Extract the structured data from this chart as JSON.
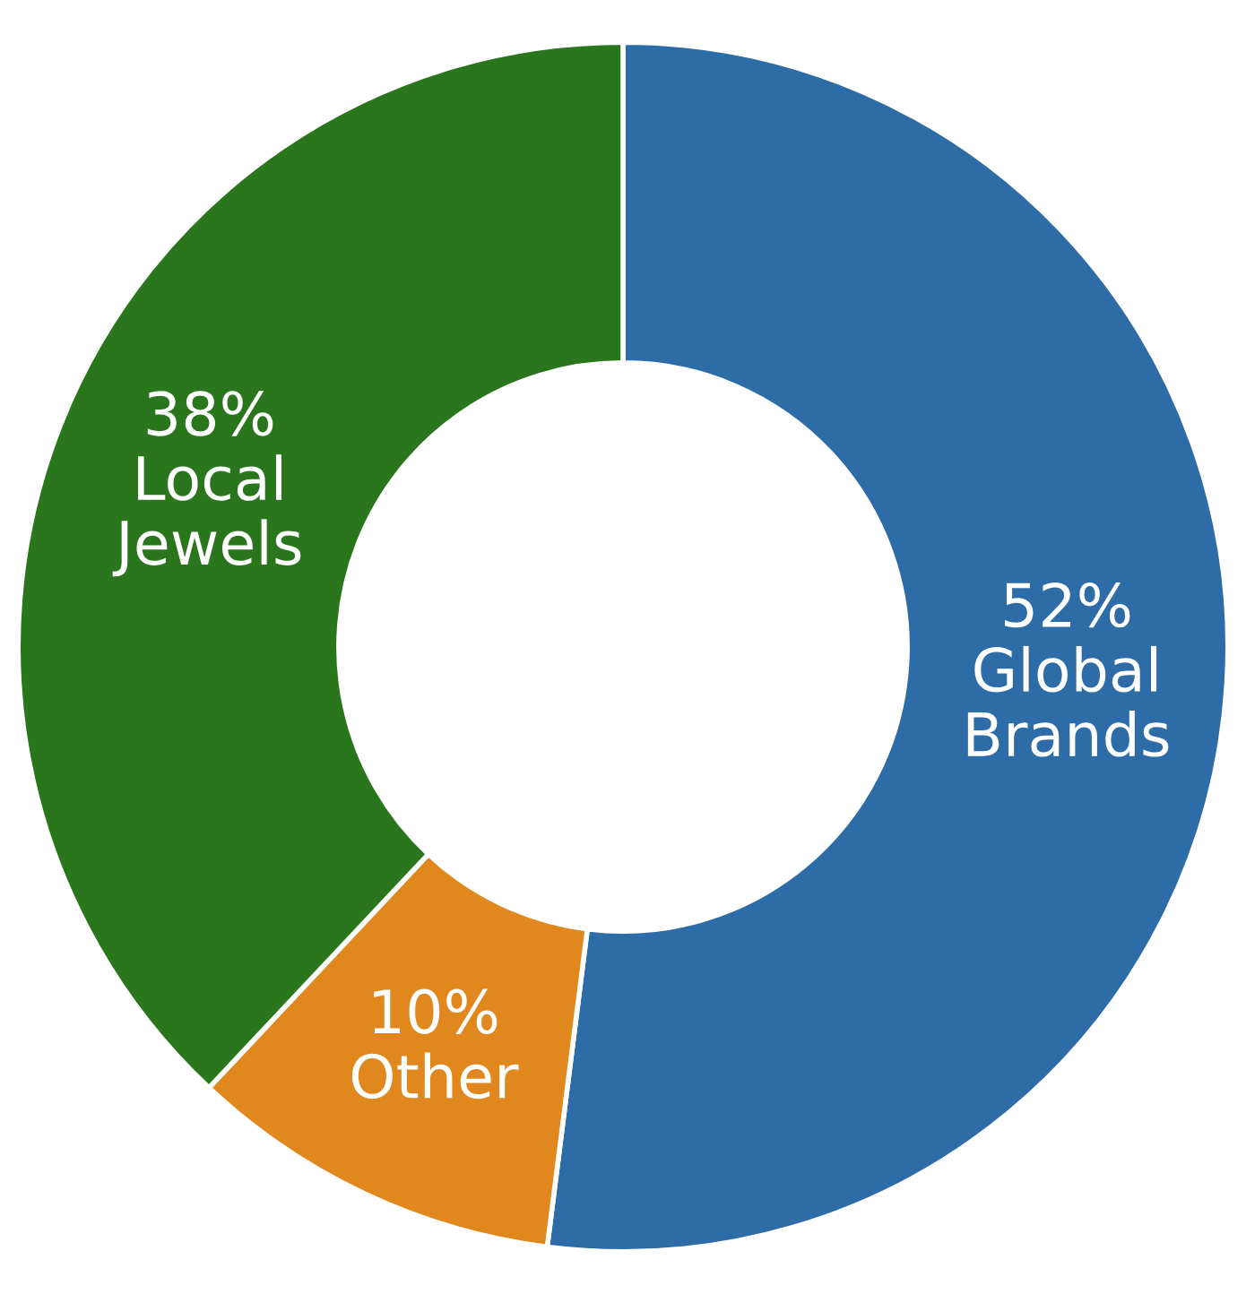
{
  "chart_data": {
    "type": "donut",
    "categories": [
      "Global Brands",
      "Other",
      "Local Jewels"
    ],
    "values": [
      52,
      10,
      38
    ],
    "value_labels": [
      "52%",
      "10%",
      "38%"
    ],
    "colors": [
      "#2e6ca8",
      "#e0881e",
      "#2a761c"
    ],
    "legend": false
  }
}
